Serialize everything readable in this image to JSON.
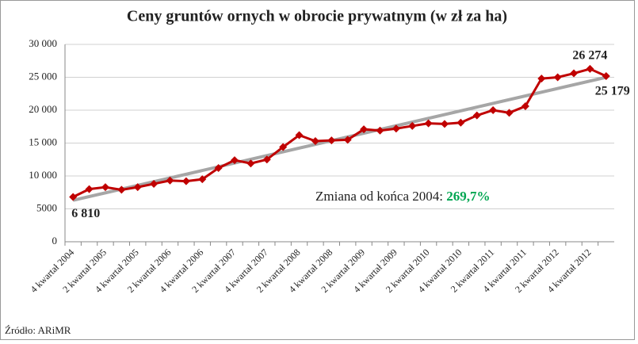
{
  "chart_data": {
    "type": "line",
    "title": "Ceny gruntów ornych w obrocie prywatnym (w zł za ha)",
    "categories": [
      "4 kwartał 2004",
      null,
      "2 kwartał 2005",
      null,
      "4 kwartał 2005",
      null,
      "2 kwartał 2006",
      null,
      "4 kwartał 2006",
      null,
      "2 kwartał 2007",
      null,
      "4 kwartał 2007",
      null,
      "2 kwartał 2008",
      null,
      "4 kwartał 2008",
      null,
      "2 kwartał 2009",
      null,
      "4 kwartał 2009",
      null,
      "2 kwartał 2010",
      null,
      "4 kwartał 2010",
      null,
      "2 kwartał 2011",
      null,
      "4 kwartał 2011",
      null,
      "2 kwartał 2012",
      null,
      "4 kwartał 2012",
      null
    ],
    "series": [
      {
        "color": "#c00000",
        "values": [
          6810,
          8000,
          8300,
          7900,
          8300,
          8800,
          9300,
          9200,
          9500,
          11200,
          12400,
          11900,
          12500,
          14400,
          16200,
          15300,
          15400,
          15500,
          17100,
          16900,
          17200,
          17600,
          18000,
          17900,
          18100,
          19200,
          20000,
          19600,
          20600,
          24800,
          25000,
          25600,
          26274,
          25179
        ],
        "value_labels": [
          "6 810",
          null,
          null,
          null,
          null,
          null,
          null,
          null,
          null,
          null,
          null,
          null,
          null,
          null,
          null,
          null,
          null,
          null,
          null,
          null,
          null,
          null,
          null,
          null,
          null,
          null,
          null,
          null,
          null,
          null,
          null,
          null,
          "26 274",
          "25 179"
        ]
      }
    ],
    "trendline": {
      "color": "#a6a6a6",
      "values": [
        6300,
        25000
      ]
    },
    "ylim": [
      0,
      30000
    ],
    "yticks": [
      0,
      5000,
      {
        "value": 10000,
        "label": "10 000"
      },
      {
        "value": 15000,
        "label": "15 000"
      },
      {
        "value": 20000,
        "label": "20 000"
      },
      {
        "value": 25000,
        "label": "25 000"
      },
      {
        "value": 30000,
        "label": "30 000"
      }
    ],
    "annotation": {
      "text": "Zmiana od końca 2004: ",
      "highlight": "269,7%",
      "highlight_color": "#00a651"
    },
    "source": "Źródło: ARiMR"
  }
}
